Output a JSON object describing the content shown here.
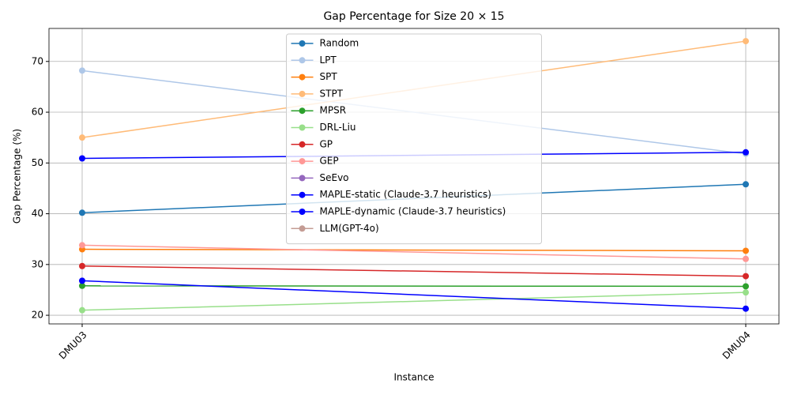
{
  "chart_data": {
    "type": "line",
    "title": "Gap Percentage for Size 20 × 15",
    "x_label": "Instance",
    "y_label": "Gap Percentage (%)",
    "categories": [
      "DMU03",
      "DMU04"
    ],
    "series": [
      {
        "name": "Random",
        "color": "#1f77b4",
        "values": [
          40.2,
          45.8
        ]
      },
      {
        "name": "LPT",
        "color": "#aec7e8",
        "values": [
          68.2,
          51.8
        ]
      },
      {
        "name": "SPT",
        "color": "#ff7f0e",
        "values": [
          33.0,
          32.7
        ]
      },
      {
        "name": "STPT",
        "color": "#ffbb78",
        "values": [
          55.0,
          74.0
        ]
      },
      {
        "name": "MPSR",
        "color": "#2ca02c",
        "values": [
          25.8,
          25.7
        ]
      },
      {
        "name": "DRL-Liu",
        "color": "#98df8a",
        "values": [
          21.0,
          24.5
        ]
      },
      {
        "name": "GP",
        "color": "#d62728",
        "values": [
          29.7,
          27.7
        ]
      },
      {
        "name": "GEP",
        "color": "#ff9896",
        "values": [
          33.8,
          31.1
        ]
      },
      {
        "name": "SeEvo",
        "color": "#9467bd",
        "values": [
          null,
          null
        ]
      },
      {
        "name": "MAPLE-static (Claude-3.7 heuristics)",
        "color": "#0000ff",
        "values": [
          50.9,
          52.1
        ]
      },
      {
        "name": "MAPLE-dynamic (Claude-3.7 heuristics)",
        "color": "#0000ff",
        "values": [
          26.8,
          21.3
        ]
      },
      {
        "name": "LLM(GPT-4o)",
        "color": "#c49c94",
        "values": [
          null,
          null
        ]
      }
    ],
    "ylim": [
      18.3,
      76.5
    ],
    "yticks": [
      20,
      30,
      40,
      50,
      60,
      70
    ],
    "grid": true,
    "legend": "upper center"
  }
}
